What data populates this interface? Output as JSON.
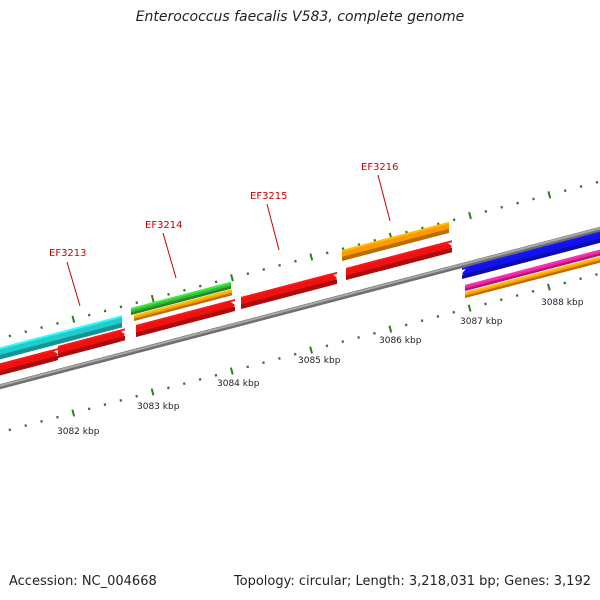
{
  "title": "Enterococcus faecalis V583, complete genome",
  "footer": {
    "accession": "Accession: NC_004668",
    "summary": "Topology: circular; Length: 3,218,031 bp; Genes: 3,192"
  },
  "colors": {
    "backbone": "#8c8c8c",
    "tick": "#2e7d1e",
    "label": "#cc0000",
    "red": "#ee1111",
    "cyan": "#22cccc",
    "green": "#33bb33",
    "orange": "#ff9900",
    "blue": "#1111ee",
    "magenta": "#ee2299"
  },
  "axis": {
    "unit": "kbp",
    "ticks": [
      {
        "label": "3082 kbp"
      },
      {
        "label": "3083 kbp"
      },
      {
        "label": "3084 kbp"
      },
      {
        "label": "3085 kbp"
      },
      {
        "label": "3086 kbp"
      },
      {
        "label": "3087 kbp"
      },
      {
        "label": "3088 kbp"
      }
    ]
  },
  "gene_labels": [
    {
      "name": "EF3213"
    },
    {
      "name": "EF3214"
    },
    {
      "name": "EF3215"
    },
    {
      "name": "EF3216"
    }
  ]
}
